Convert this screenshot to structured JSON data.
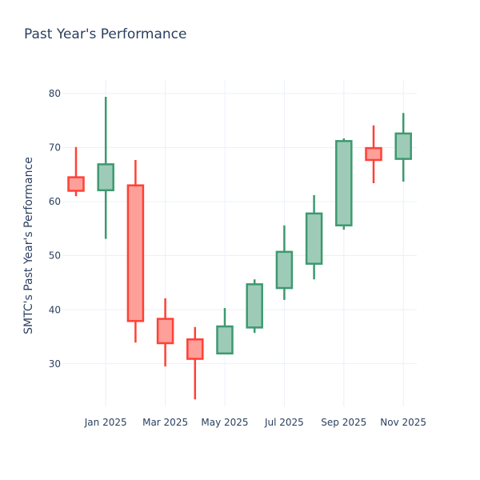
{
  "chart": {
    "title": "Past Year's Performance",
    "y_axis_title": "SMTC's Past Year's Performance",
    "colors": {
      "background": "#ffffff",
      "text": "#2a3f5f",
      "grid": "#ebf0f8",
      "increasing_line": "#3d9970",
      "increasing_fill": "#9ecbb7",
      "decreasing_line": "#ff4136",
      "decreasing_fill": "#ff9f9a"
    }
  },
  "chart_data": {
    "type": "candlestick",
    "title": "Past Year's Performance",
    "xlabel": "",
    "ylabel": "SMTC's Past Year's Performance",
    "x": [
      "Dec 2024",
      "Jan 2025",
      "Feb 2025",
      "Mar 2025",
      "Apr 2025",
      "May 2025",
      "Jun 2025",
      "Jul 2025",
      "Aug 2025",
      "Sep 2025",
      "Oct 2025",
      "Nov 2025"
    ],
    "open": [
      64.5,
      62.1,
      63.0,
      38.3,
      34.5,
      31.9,
      36.7,
      44.0,
      48.5,
      55.6,
      69.9,
      67.9
    ],
    "high": [
      70.1,
      79.4,
      67.7,
      42.1,
      36.8,
      40.3,
      45.6,
      55.6,
      61.2,
      71.7,
      74.1,
      76.4
    ],
    "low": [
      61.0,
      53.1,
      33.9,
      29.5,
      23.4,
      31.8,
      35.7,
      41.8,
      45.6,
      54.8,
      63.4,
      63.7
    ],
    "close": [
      62.0,
      66.9,
      37.9,
      33.8,
      30.9,
      36.9,
      44.7,
      50.7,
      57.8,
      71.2,
      67.7,
      72.6
    ],
    "y_ticks": [
      30,
      40,
      50,
      60,
      70,
      80
    ],
    "x_tick_indices": [
      1,
      3,
      5,
      7,
      9,
      11
    ],
    "x_tick_labels": [
      "Jan 2025",
      "Mar 2025",
      "May 2025",
      "Jul 2025",
      "Sep 2025",
      "Nov 2025"
    ],
    "ylim": [
      22.1,
      82.5
    ],
    "grid": true,
    "legend": false
  }
}
